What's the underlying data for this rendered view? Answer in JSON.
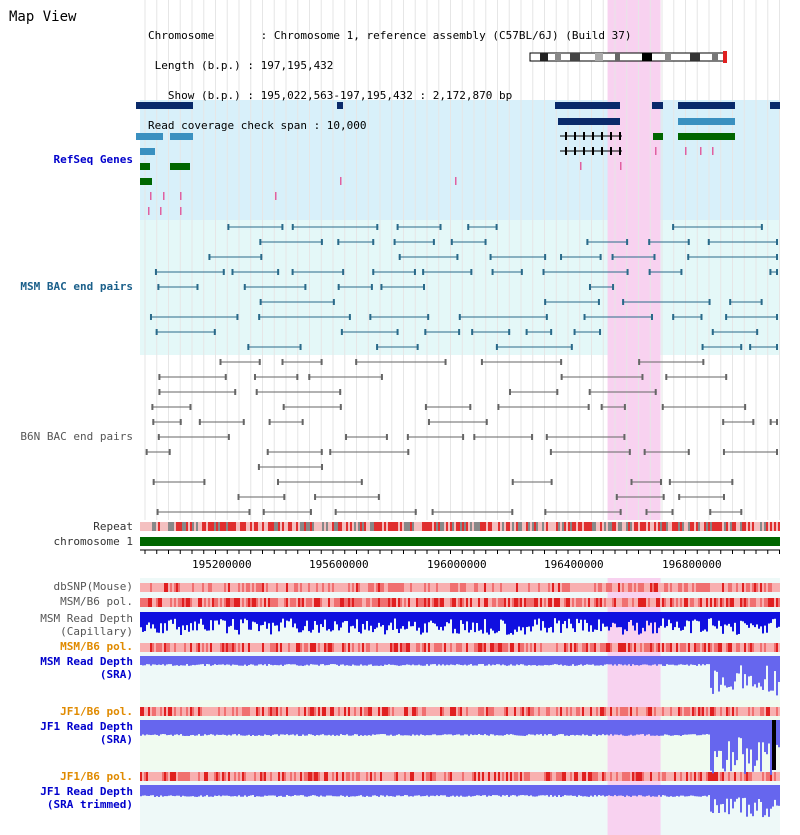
{
  "page": {
    "title": "Map View",
    "info_lines": [
      "Chromosome       : Chromosome 1, reference assembly (C57BL/6J) (Build 37)",
      " Length (b.p.) : 197,195,432",
      "   Show (b.p.) : 195,022,563-197,195,432 : 2,172,870 bp",
      "Read coverage check span : 10,000"
    ]
  },
  "tracks": {
    "refseq": "RefSeq Genes",
    "msm_bac": "MSM BAC end pairs",
    "b6n_bac": "B6N BAC end pairs",
    "repeat": "Repeat",
    "chromosome": "chromosome 1",
    "dbsnp": "dbSNP(Mouse)",
    "msm_pol_1": "MSM/B6 pol.",
    "msm_depth_cap_1": "MSM Read Depth",
    "msm_depth_cap_2": "(Capillary)",
    "msm_pol_2": "MSM/B6 pol.",
    "msm_depth_sra_1": "MSM Read Depth",
    "msm_depth_sra_2": "(SRA)",
    "jf1_pol_1": "JF1/B6 pol.",
    "jf1_depth_sra_1": "JF1 Read Depth",
    "jf1_depth_sra_2": "(SRA)",
    "jf1_pol_2": "JF1/B6 pol.",
    "jf1_depth_trim_1": "JF1 Read Depth",
    "jf1_depth_trim_2": "(SRA trimmed)"
  },
  "axis": {
    "ticks": [
      "195200000",
      "195600000",
      "196000000",
      "196400000",
      "196800000"
    ]
  },
  "view": {
    "start_bp": 195022563,
    "end_bp": 197195432,
    "highlight_start_bp": 196610000,
    "highlight_end_bp": 196790000
  },
  "colors": {
    "refseq_bg": "#d8f0fa",
    "msm_bg": "#e4f8f8",
    "highlight": "#f8d2f0",
    "refseq_blue": "#0a2a6a",
    "refseq_light": "#3a90c0",
    "refseq_green": "#006600",
    "msm_line": "#2a6a8a",
    "b6n_line": "#666666",
    "chrom_bar": "#006600",
    "depth_blue": "#1010e0",
    "depth_light": "#6666ee"
  }
}
